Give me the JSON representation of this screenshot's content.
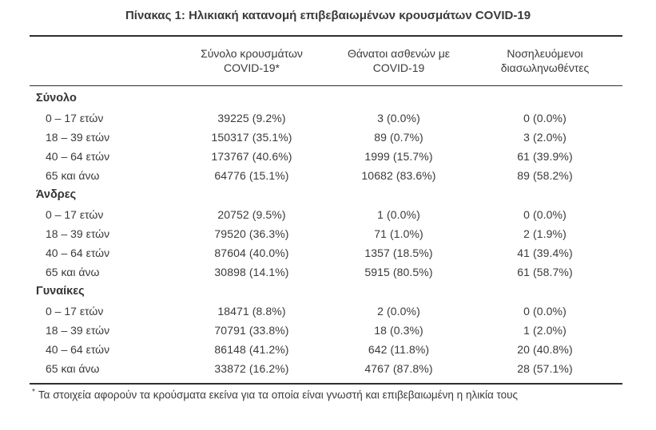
{
  "title": "Πίνακας 1: Ηλικιακή κατανομή επιβεβαιωμένων κρουσμάτων COVID-19",
  "colors": {
    "text": "#3a3a3a",
    "rule": "#2f2f2f",
    "background": "#ffffff"
  },
  "table": {
    "col_headers": [
      {
        "line1": "Σύνολο κρουσμάτων",
        "line2": "COVID-19*"
      },
      {
        "line1": "Θάνατοι ασθενών με",
        "line2": "COVID-19"
      },
      {
        "line1": "Νοσηλευόμενοι",
        "line2": "διασωληνωθέντες"
      }
    ],
    "groups": [
      {
        "label": "Σύνολο",
        "rows": [
          {
            "age": "0 – 17 ετών",
            "cases": "39225 (9.2%)",
            "deaths": "3 (0.0%)",
            "intubated": "0 (0.0%)"
          },
          {
            "age": "18 – 39 ετών",
            "cases": "150317 (35.1%)",
            "deaths": "89 (0.7%)",
            "intubated": "3 (2.0%)"
          },
          {
            "age": "40 – 64 ετών",
            "cases": "173767 (40.6%)",
            "deaths": "1999 (15.7%)",
            "intubated": "61 (39.9%)"
          },
          {
            "age": "65 και άνω",
            "cases": "64776 (15.1%)",
            "deaths": "10682 (83.6%)",
            "intubated": "89 (58.2%)"
          }
        ]
      },
      {
        "label": "Άνδρες",
        "rows": [
          {
            "age": "0 – 17 ετών",
            "cases": "20752 (9.5%)",
            "deaths": "1 (0.0%)",
            "intubated": "0 (0.0%)"
          },
          {
            "age": "18 – 39 ετών",
            "cases": "79520 (36.3%)",
            "deaths": "71 (1.0%)",
            "intubated": "2 (1.9%)"
          },
          {
            "age": "40 – 64 ετών",
            "cases": "87604 (40.0%)",
            "deaths": "1357 (18.5%)",
            "intubated": "41 (39.4%)"
          },
          {
            "age": "65 και άνω",
            "cases": "30898 (14.1%)",
            "deaths": "5915 (80.5%)",
            "intubated": "61 (58.7%)"
          }
        ]
      },
      {
        "label": "Γυναίκες",
        "rows": [
          {
            "age": "0 – 17 ετών",
            "cases": "18471 (8.8%)",
            "deaths": "2 (0.0%)",
            "intubated": "0 (0.0%)"
          },
          {
            "age": "18 – 39 ετών",
            "cases": "70791 (33.8%)",
            "deaths": "18 (0.3%)",
            "intubated": "1 (2.0%)"
          },
          {
            "age": "40 – 64 ετών",
            "cases": "86148 (41.2%)",
            "deaths": "642 (11.8%)",
            "intubated": "20 (40.8%)"
          },
          {
            "age": "65 και άνω",
            "cases": "33872 (16.2%)",
            "deaths": "4767 (87.8%)",
            "intubated": "28 (57.1%)"
          }
        ]
      }
    ]
  },
  "footnote": {
    "marker": "*",
    "text": "Τα στοιχεία αφορούν τα κρούσματα εκείνα για τα οποία είναι γνωστή και επιβεβαιωμένη η ηλικία τους"
  }
}
